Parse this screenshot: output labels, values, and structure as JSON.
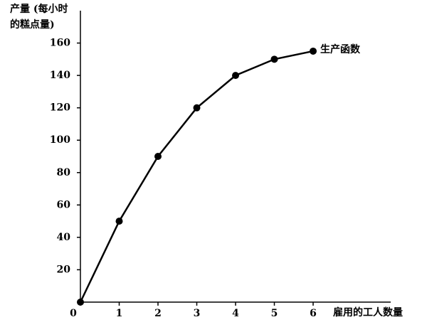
{
  "chart_data": {
    "type": "line",
    "ylabel": [
      "产量 (每小时",
      "的糕点量)"
    ],
    "xlabel": "雇用的工人数量",
    "x": [
      0,
      1,
      2,
      3,
      4,
      5,
      6
    ],
    "series": [
      {
        "name": "生产函数",
        "color": "#000000",
        "values": [
          0,
          50,
          90,
          120,
          140,
          150,
          155
        ]
      }
    ],
    "xlim": [
      0,
      8
    ],
    "ylim": [
      0,
      180
    ],
    "xticks": [
      0,
      1,
      2,
      3,
      4,
      5,
      6
    ],
    "yticks": [
      20,
      40,
      60,
      80,
      100,
      120,
      140,
      160
    ],
    "markers": true,
    "grid": false
  }
}
